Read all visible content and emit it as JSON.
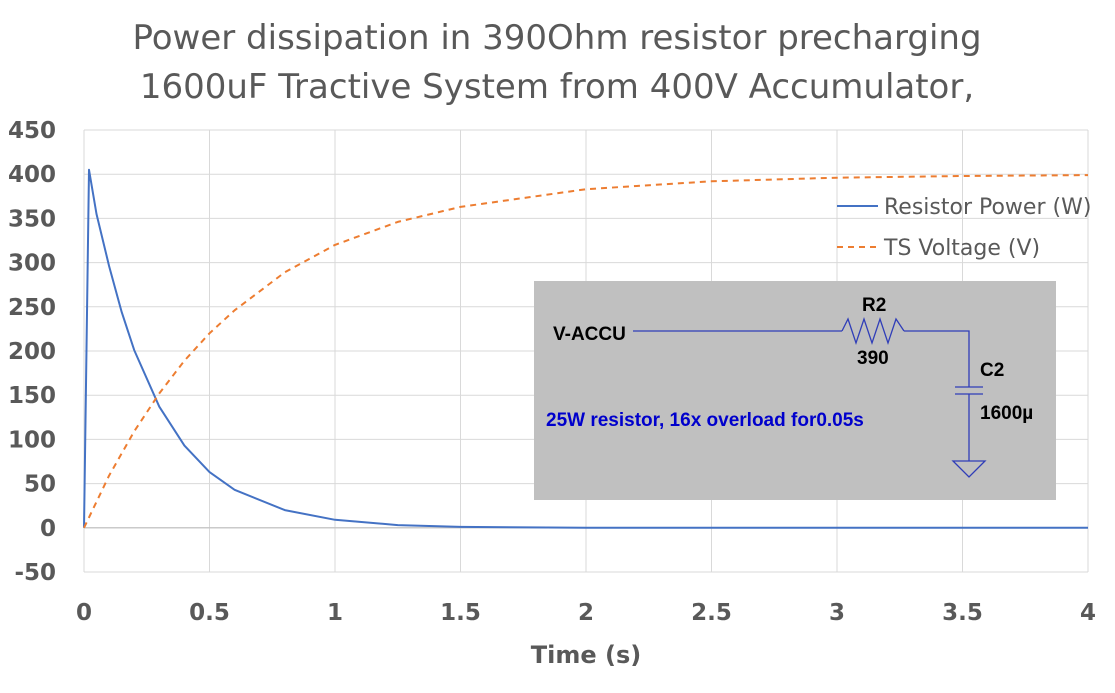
{
  "chart_data": {
    "type": "line",
    "title_lines": [
      "Power dissipation in 390Ohm resistor precharging",
      "1600uF Tractive System from 400V Accumulator,"
    ],
    "xlabel": "Time (s)",
    "ylabel": "",
    "xlim": [
      0,
      4
    ],
    "ylim": [
      -50,
      450
    ],
    "x_ticks": [
      0,
      0.5,
      1,
      1.5,
      2,
      2.5,
      3,
      3.5,
      4
    ],
    "x_tick_labels": [
      "0",
      "0.5",
      "1",
      "1.5",
      "2",
      "2.5",
      "3",
      "3.5",
      "4"
    ],
    "y_ticks": [
      -50,
      0,
      50,
      100,
      150,
      200,
      250,
      300,
      350,
      400,
      450
    ],
    "y_tick_labels": [
      "-50",
      "0",
      "50",
      "100",
      "150",
      "200",
      "250",
      "300",
      "350",
      "400",
      "450"
    ],
    "grid": true,
    "legend_position": "top-right",
    "series": [
      {
        "name": "Resistor Power (W)",
        "color": "#4472C4",
        "style": "solid",
        "x": [
          0,
          0.02,
          0.05,
          0.1,
          0.15,
          0.2,
          0.3,
          0.4,
          0.5,
          0.6,
          0.8,
          1.0,
          1.25,
          1.5,
          2.0,
          2.5,
          3.0,
          3.5,
          4.0
        ],
        "y": [
          0,
          405,
          355,
          296,
          244,
          201,
          137,
          93,
          63,
          43,
          20,
          9,
          3,
          1,
          0,
          0,
          0,
          0,
          0
        ]
      },
      {
        "name": "TS Voltage (V)",
        "color": "#ED7D31",
        "style": "dashed",
        "x": [
          0,
          0.1,
          0.2,
          0.3,
          0.4,
          0.5,
          0.6,
          0.8,
          1.0,
          1.25,
          1.5,
          2.0,
          2.5,
          3.0,
          3.5,
          4.0
        ],
        "y": [
          0,
          59,
          109,
          152,
          189,
          220,
          246,
          289,
          320,
          346,
          363,
          383,
          392,
          396,
          398,
          399
        ]
      }
    ]
  },
  "schematic": {
    "source_label": "V-ACCU",
    "resistor_name": "R2",
    "resistor_value": "390",
    "capacitor_name": "C2",
    "capacitor_value": "1600µ",
    "note": "25W resistor, 16x overload  for0.05s",
    "note_color": "#0000CC",
    "background_color": "#C0C0C0",
    "wire_color": "#2F3DB8"
  }
}
